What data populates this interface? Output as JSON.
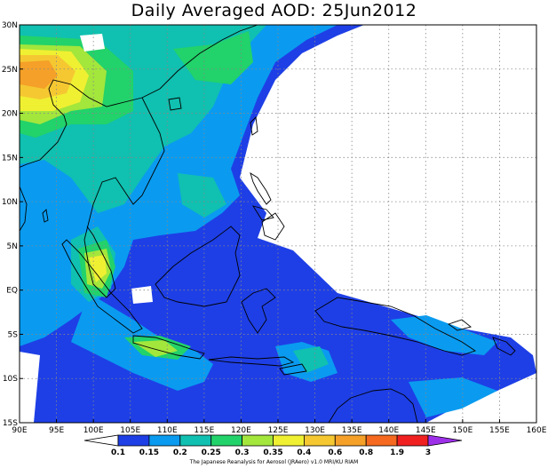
{
  "title": "Daily Averaged AOD: 25Jun2012",
  "credit": "The Japanese Reanalysis for Aerosol (JRAero) v1.0 MRI/KU RIAM",
  "map": {
    "lon_range": [
      90,
      160
    ],
    "lat_range": [
      -15,
      30
    ],
    "x_ticks": [
      "90E",
      "95E",
      "100E",
      "105E",
      "110E",
      "115E",
      "120E",
      "125E",
      "130E",
      "135E",
      "140E",
      "145E",
      "150E",
      "155E",
      "160E"
    ],
    "y_ticks": [
      "30N",
      "25N",
      "20N",
      "15N",
      "10N",
      "5N",
      "EQ",
      "5S",
      "10S",
      "15S"
    ]
  },
  "legend": {
    "levels": [
      "0.1",
      "0.15",
      "0.2",
      "0.25",
      "0.3",
      "0.35",
      "0.4",
      "0.6",
      "0.8",
      "1.9",
      "3"
    ],
    "colors": [
      "#ffffff",
      "#1e3fe6",
      "#0a9bf0",
      "#10c0b0",
      "#22d26a",
      "#a3e63c",
      "#f0f032",
      "#f5c832",
      "#f5a028",
      "#f56a20",
      "#f02020",
      "#9d30e8"
    ]
  }
}
